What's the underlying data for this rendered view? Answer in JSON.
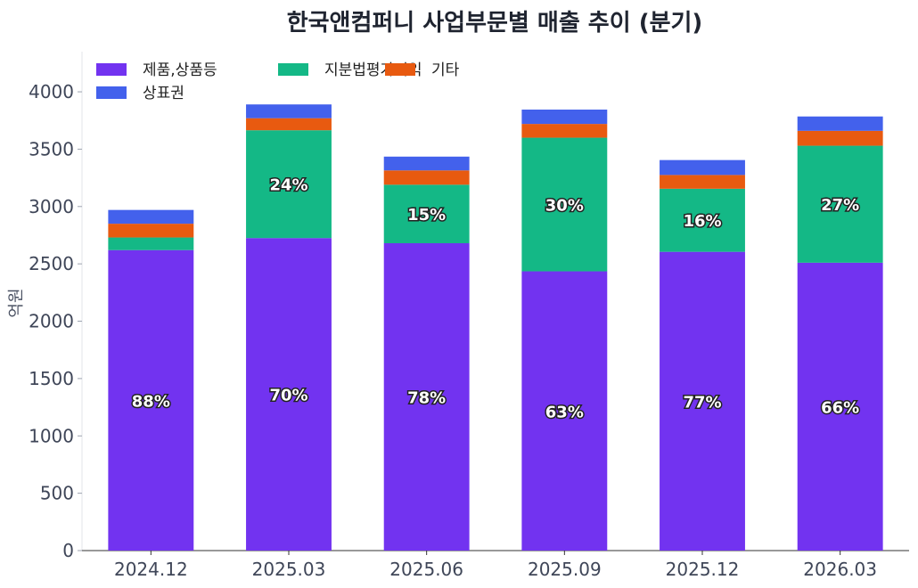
{
  "chart_data": {
    "type": "bar",
    "stacked": true,
    "title": "한국앤컴퍼니 사업부문별 매출 추이 (분기)",
    "xlabel": "",
    "ylabel": "억원",
    "ylim": [
      0,
      4350
    ],
    "yticks": [
      0,
      500,
      1000,
      1500,
      2000,
      2500,
      3000,
      3500,
      4000
    ],
    "categories": [
      "2024.12",
      "2025.03",
      "2025.06",
      "2025.09",
      "2025.12",
      "2026.03"
    ],
    "legend_position": "top-left",
    "series": [
      {
        "name": "제품,상품등",
        "color": "#7233f0",
        "values": [
          2620,
          2725,
          2680,
          2435,
          2605,
          2510
        ],
        "labels": [
          "88%",
          "70%",
          "78%",
          "63%",
          "77%",
          "66%"
        ]
      },
      {
        "name": "지분법평가이익",
        "color": "#14b886",
        "values": [
          110,
          940,
          510,
          1165,
          550,
          1020
        ],
        "labels": [
          "",
          "24%",
          "15%",
          "30%",
          "16%",
          "27%"
        ]
      },
      {
        "name": "기타",
        "color": "#e85a10",
        "values": [
          120,
          105,
          125,
          120,
          120,
          130
        ],
        "labels": [
          "",
          "",
          "",
          "",
          "",
          ""
        ]
      },
      {
        "name": "상표권",
        "color": "#4361ec",
        "values": [
          120,
          120,
          120,
          125,
          130,
          125
        ],
        "labels": [
          "",
          "",
          "",
          "",
          "",
          ""
        ]
      }
    ]
  }
}
